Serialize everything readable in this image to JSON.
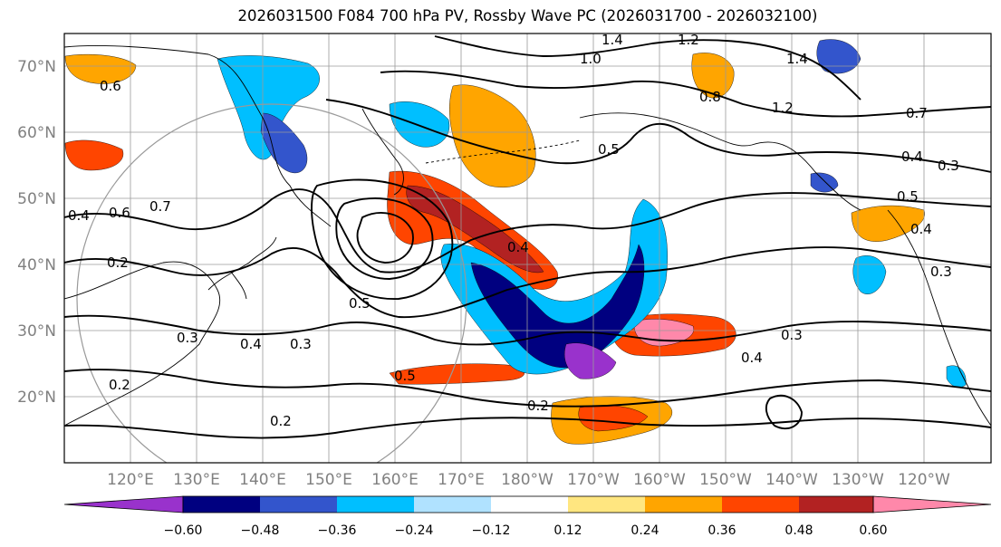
{
  "title": "2026031500 F084 700 hPa PV, Rossby Wave PC (2026031700 - 2026032100)",
  "map": {
    "projection": "equirectangular",
    "lon_range_east": [
      110,
      250
    ],
    "lat_range": [
      10,
      75
    ],
    "grid_spacing_deg": 10,
    "lat_ticks": [
      "20°N",
      "30°N",
      "40°N",
      "50°N",
      "60°N",
      "70°N"
    ],
    "lon_ticks": [
      "120°E",
      "130°E",
      "140°E",
      "150°E",
      "160°E",
      "170°E",
      "180°W",
      "170°W",
      "160°W",
      "150°W",
      "140°W",
      "130°W",
      "120°W"
    ],
    "contour_labels": [
      "1.4",
      "1.2",
      "1.0",
      "1.4",
      "1.2",
      "0.8",
      "0.7",
      "0.6",
      "0.5",
      "0.4",
      "0.3",
      "0.2",
      "0.7",
      "0.6",
      "0.4",
      "0.4",
      "0.3",
      "0.5",
      "0.5",
      "0.4",
      "0.3",
      "0.5",
      "0.2",
      "0.2",
      "0.4",
      "0.3",
      "0.2",
      "0.3",
      "0.4"
    ]
  },
  "colorbar": {
    "ticks": [
      "−0.60",
      "−0.48",
      "−0.36",
      "−0.24",
      "−0.12",
      "0.12",
      "0.24",
      "0.36",
      "0.48",
      "0.60"
    ],
    "colors": [
      "#9932cc",
      "#000080",
      "#3355cc",
      "#00bfff",
      "#b0e2ff",
      "#ffffff",
      "#ffe680",
      "#ffa500",
      "#ff4500",
      "#b22222",
      "#ff88aa"
    ],
    "extend": "both"
  }
}
